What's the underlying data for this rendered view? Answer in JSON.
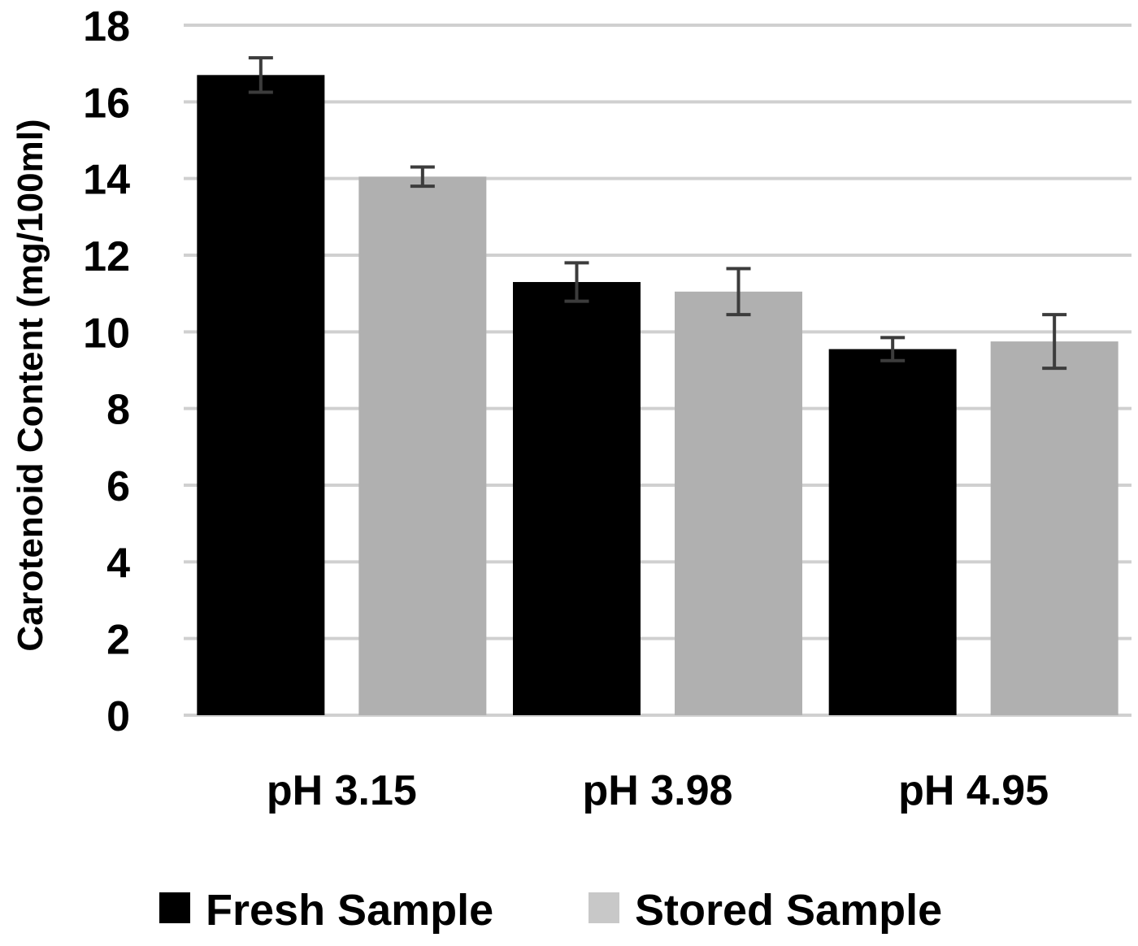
{
  "chart_data": {
    "type": "bar",
    "title": "",
    "xlabel": "",
    "ylabel": "Carotenoid Content (mg/100ml)",
    "categories": [
      "pH 3.15",
      "pH 3.98",
      "pH 4.95"
    ],
    "ylim": [
      0,
      18
    ],
    "yticks": [
      "0",
      "2",
      "4",
      "6",
      "8",
      "10",
      "12",
      "14",
      "16",
      "18"
    ],
    "grid": true,
    "legend_position": "bottom",
    "series": [
      {
        "name": "Fresh Sample",
        "color": "#000000",
        "values": [
          16.7,
          11.3,
          9.55
        ],
        "errors": [
          0.45,
          0.5,
          0.3
        ]
      },
      {
        "name": "Stored Sample",
        "color": "#b0b0b0",
        "legend_color": "#c8c8c8",
        "values": [
          14.05,
          11.05,
          9.75
        ],
        "errors": [
          0.25,
          0.6,
          0.7
        ]
      }
    ],
    "gridline_color": "#d0d0d0",
    "errorbar_color": "#3c3c3c"
  }
}
